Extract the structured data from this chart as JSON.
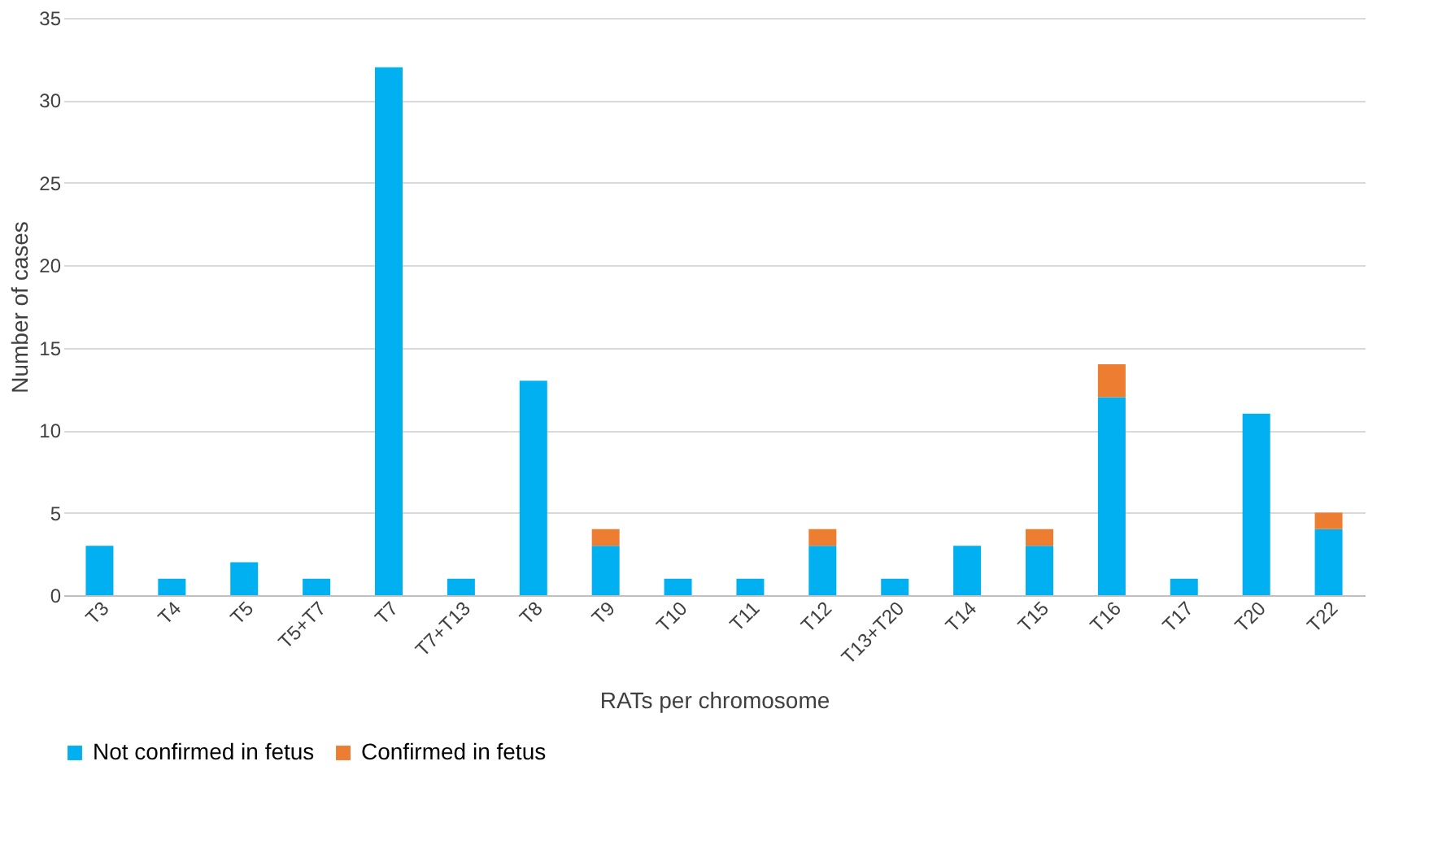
{
  "chart_data": {
    "type": "bar",
    "stacked": true,
    "xlabel": "RATs per chromosome",
    "ylabel": "Number of cases",
    "categories": [
      "T3",
      "T4",
      "T5",
      "T5+T7",
      "T7",
      "T7+T13",
      "T8",
      "T9",
      "T10",
      "T11",
      "T12",
      "T13+T20",
      "T14",
      "T15",
      "T16",
      "T17",
      "T20",
      "T22"
    ],
    "series": [
      {
        "name": "Not confirmed in fetus",
        "color": "#00b0f0",
        "values": [
          3,
          1,
          2,
          1,
          32,
          1,
          13,
          3,
          1,
          1,
          3,
          1,
          3,
          3,
          12,
          1,
          11,
          4
        ]
      },
      {
        "name": "Confirmed in fetus",
        "color": "#ed7d31",
        "values": [
          0,
          0,
          0,
          0,
          0,
          0,
          0,
          1,
          0,
          0,
          1,
          0,
          0,
          1,
          2,
          0,
          0,
          1
        ]
      }
    ],
    "ylim": [
      0,
      35
    ],
    "yticks": [
      0,
      5,
      10,
      15,
      20,
      25,
      30,
      35
    ],
    "grid": "y",
    "legend": "bottom"
  }
}
